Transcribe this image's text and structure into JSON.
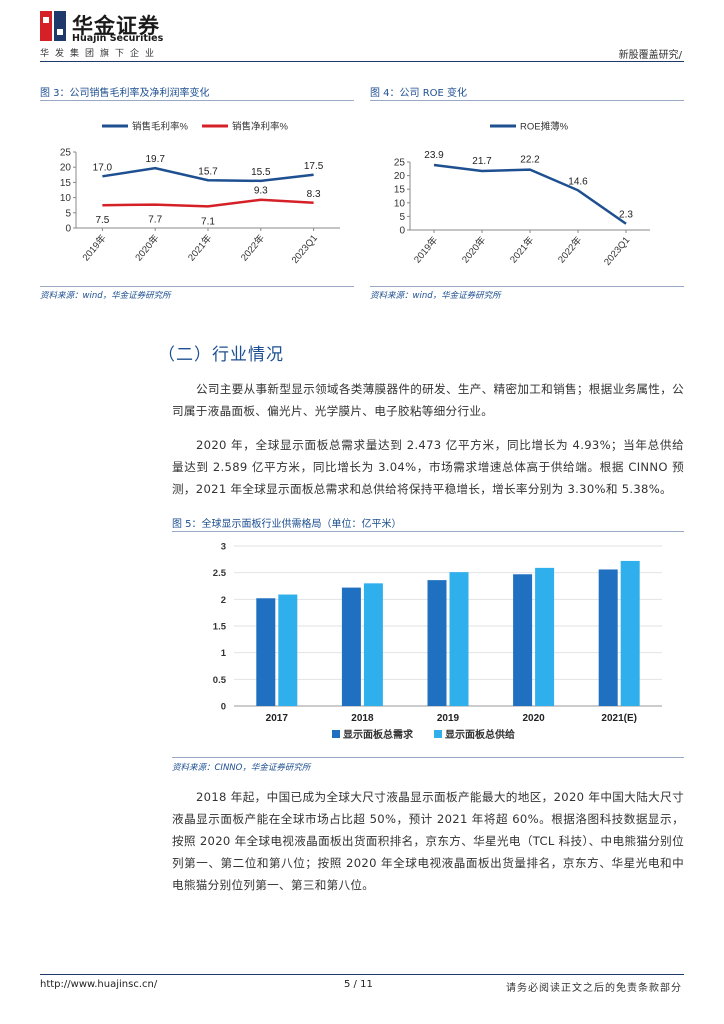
{
  "header": {
    "brand_cn": "华金证券",
    "brand_en": "Huajin Securities",
    "tagline": "华发集团旗下企业",
    "report_type": "新股覆盖研究/",
    "colors": {
      "blue": "#1d4f91",
      "red": "#d62027"
    }
  },
  "figure3": {
    "caption": "图 3：公司销售毛利率及净利润率变化",
    "source": "资料来源：wind，华金证券研究所",
    "chart_data": {
      "type": "line",
      "categories": [
        "2019年",
        "2020年",
        "2021年",
        "2022年",
        "2023Q1"
      ],
      "series": [
        {
          "name": "销售毛利率%",
          "values": [
            17.0,
            19.7,
            15.7,
            15.5,
            17.5
          ],
          "labels": [
            "17.0",
            "19.7",
            "15.7",
            "15.5",
            "17.5"
          ],
          "color": "#1d4f91"
        },
        {
          "name": "销售净利率%",
          "values": [
            7.5,
            7.7,
            7.1,
            9.3,
            8.3
          ],
          "labels": [
            "7.5",
            "7.7",
            "7.1",
            "9.3",
            "8.3"
          ],
          "color": "#d62027"
        }
      ],
      "ylim": [
        0,
        25
      ],
      "yticks": [
        "0",
        "5",
        "10",
        "15",
        "20",
        "25"
      ],
      "legend": "top"
    }
  },
  "figure4": {
    "caption": "图 4：公司 ROE 变化",
    "source": "资料来源：wind，华金证券研究所",
    "chart_data": {
      "type": "line",
      "categories": [
        "2019年",
        "2020年",
        "2021年",
        "2022年",
        "2023Q1"
      ],
      "series": [
        {
          "name": "ROE摊薄%",
          "values": [
            23.9,
            21.7,
            22.2,
            14.6,
            2.3
          ],
          "labels": [
            "23.9",
            "21.7",
            "22.2",
            "14.6",
            "2.3"
          ],
          "color": "#1d4f91"
        }
      ],
      "ylim": [
        0,
        25
      ],
      "yticks": [
        "0",
        "5",
        "10",
        "15",
        "20",
        "25"
      ],
      "legend": "top"
    }
  },
  "section": {
    "title": "（二）行业情况",
    "para1": "公司主要从事新型显示领域各类薄膜器件的研发、生产、精密加工和销售；根据业务属性，公司属于液晶面板、偏光片、光学膜片、电子胶粘等细分行业。",
    "para2": "2020 年，全球显示面板总需求量达到 2.473 亿平方米，同比增长为 4.93%；当年总供给量达到 2.589 亿平方米，同比增长为 3.04%，市场需求增速总体高于供给端。根据 CINNO 预测，2021 年全球显示面板总需求和总供给将保持平稳增长，增长率分别为 3.30%和 5.38%。",
    "para3": "2018 年起，中国已成为全球大尺寸液晶显示面板产能最大的地区，2020 年中国大陆大尺寸液晶显示面板产能在全球市场占比超 50%，预计 2021 年将超 60%。根据洛图科技数据显示，按照 2020 年全球电视液晶面板出货面积排名，京东方、华星光电（TCL 科技）、中电熊猫分别位列第一、第二位和第八位；按照 2020 年全球电视液晶面板出货量排名，京东方、华星光电和中电熊猫分别位列第一、第三和第八位。"
  },
  "figure5": {
    "caption": "图 5：全球显示面板行业供需格局（单位：亿平米）",
    "source": "资料来源：CINNO，华金证券研究所",
    "chart_data": {
      "type": "bar",
      "categories": [
        "2017",
        "2018",
        "2019",
        "2020",
        "2021(E)"
      ],
      "series": [
        {
          "name": "显示面板总需求",
          "values": [
            2.02,
            2.22,
            2.36,
            2.47,
            2.56
          ],
          "color": "#1f70c1"
        },
        {
          "name": "显示面板总供给",
          "values": [
            2.09,
            2.3,
            2.51,
            2.59,
            2.72
          ],
          "color": "#2fb0ec"
        }
      ],
      "ylim": [
        0,
        3
      ],
      "yticks": [
        "0",
        "0.5",
        "1",
        "1.5",
        "2",
        "2.5",
        "3"
      ],
      "legend": "bottom"
    }
  },
  "footer": {
    "url": "http://www.huajinsc.cn/",
    "page": "5 / 11",
    "disclaimer": "请务必阅读正文之后的免责条款部分"
  }
}
